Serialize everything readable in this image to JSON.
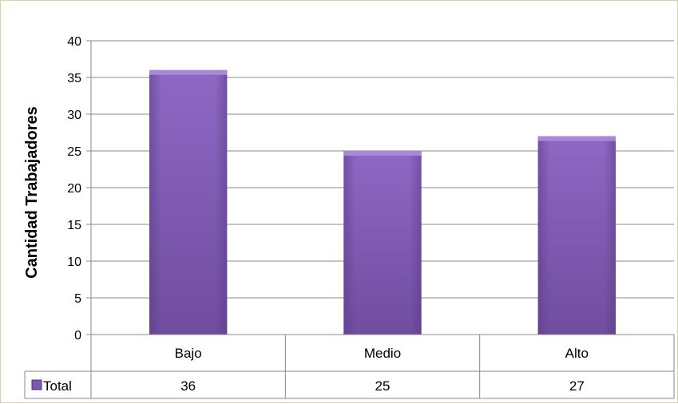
{
  "chart_data": {
    "type": "bar",
    "title": "",
    "xlabel": "",
    "ylabel": "Cantidad Trabajadores",
    "categories": [
      "Bajo",
      "Medio",
      "Alto"
    ],
    "series": [
      {
        "name": "Total",
        "values": [
          36,
          25,
          27
        ]
      }
    ],
    "ylim": [
      0,
      40
    ],
    "yticks": [
      0,
      5,
      10,
      15,
      20,
      25,
      30,
      35,
      40
    ],
    "grid": true,
    "legend": "data-table-left",
    "data_table": true,
    "colors": {
      "bar": "#7d58b0",
      "bar_light": "#9a78c8",
      "bar_dark": "#5a3c86",
      "grid": "#888888",
      "frame": "#d6d1a8",
      "legend_key": "#7d58b0"
    }
  }
}
